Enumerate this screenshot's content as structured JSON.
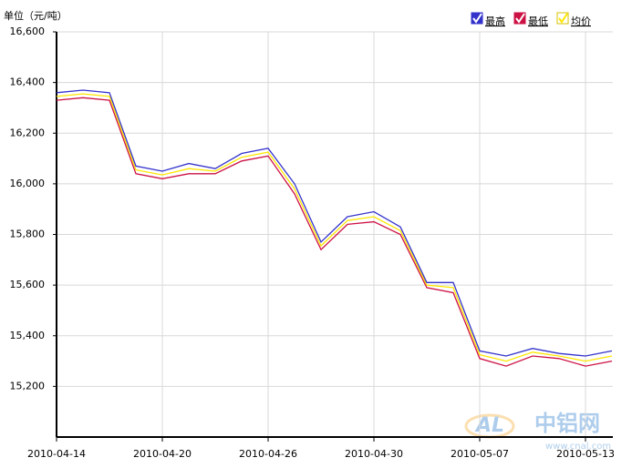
{
  "chart_data": {
    "type": "line",
    "y_label": "单位（元/吨）",
    "categories": [
      "2010-04-14",
      null,
      null,
      null,
      "2010-04-20",
      null,
      null,
      null,
      "2010-04-26",
      null,
      null,
      null,
      "2010-04-30",
      null,
      null,
      null,
      "2010-05-07",
      null,
      null,
      null,
      "2010-05-13",
      null
    ],
    "series": [
      {
        "name": "最高",
        "color": "#3333cc",
        "values": [
          16360,
          16370,
          16360,
          16070,
          16050,
          16080,
          16060,
          16120,
          16140,
          16000,
          15770,
          15870,
          15890,
          15830,
          15610,
          15610,
          15340,
          15320,
          15350,
          15330,
          15320,
          15340
        ]
      },
      {
        "name": "最低",
        "color": "#cc1144",
        "values": [
          16330,
          16340,
          16330,
          16040,
          16020,
          16040,
          16040,
          16090,
          16110,
          15960,
          15740,
          15840,
          15850,
          15800,
          15590,
          15570,
          15310,
          15280,
          15320,
          15310,
          15280,
          15300
        ]
      },
      {
        "name": "均价",
        "color": "#ffe600",
        "values": [
          16345,
          16355,
          16345,
          16055,
          16035,
          16060,
          16050,
          16105,
          16125,
          15980,
          15755,
          15855,
          15870,
          15815,
          15600,
          15590,
          15325,
          15300,
          15335,
          15320,
          15300,
          15320
        ]
      }
    ],
    "ylim": [
      15000,
      16600
    ],
    "yticks": [
      {
        "value": 15200,
        "label": "15,200"
      },
      {
        "value": 15400,
        "label": "15,400"
      },
      {
        "value": 15600,
        "label": "15,600"
      },
      {
        "value": 15800,
        "label": "15,800"
      },
      {
        "value": 16000,
        "label": "16,000"
      },
      {
        "value": 16200,
        "label": "16,200"
      },
      {
        "value": 16400,
        "label": "16,400"
      },
      {
        "value": 16600,
        "label": "16,600"
      }
    ],
    "grid": true,
    "legend": "top-right"
  },
  "watermark": {
    "logo": "AL",
    "name": "中铝网",
    "url": "www.cnal.com"
  }
}
